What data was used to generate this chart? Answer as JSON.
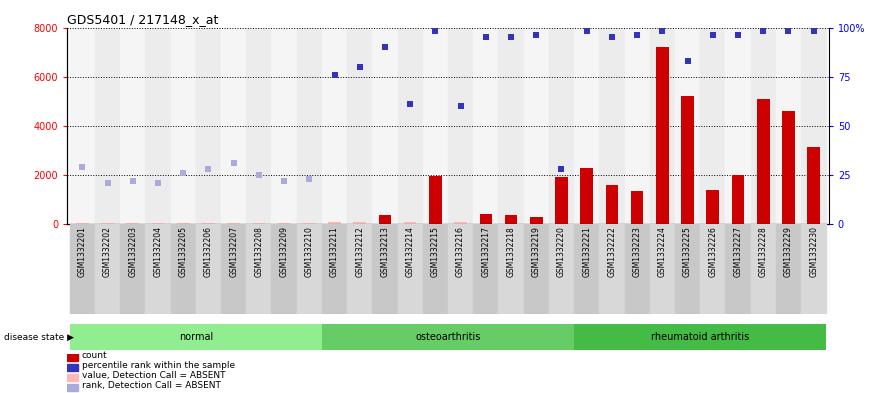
{
  "title": "GDS5401 / 217148_x_at",
  "samples": [
    "GSM1332201",
    "GSM1332202",
    "GSM1332203",
    "GSM1332204",
    "GSM1332205",
    "GSM1332206",
    "GSM1332207",
    "GSM1332208",
    "GSM1332209",
    "GSM1332210",
    "GSM1332211",
    "GSM1332212",
    "GSM1332213",
    "GSM1332214",
    "GSM1332215",
    "GSM1332216",
    "GSM1332217",
    "GSM1332218",
    "GSM1332219",
    "GSM1332220",
    "GSM1332221",
    "GSM1332222",
    "GSM1332223",
    "GSM1332224",
    "GSM1332225",
    "GSM1332226",
    "GSM1332227",
    "GSM1332228",
    "GSM1332229",
    "GSM1332230"
  ],
  "count_values": [
    50,
    55,
    55,
    50,
    50,
    55,
    50,
    45,
    50,
    50,
    80,
    70,
    350,
    80,
    1950,
    80,
    400,
    380,
    280,
    1900,
    2300,
    1600,
    1350,
    7200,
    5200,
    1380,
    2000,
    5100,
    4600,
    3150
  ],
  "absent_flags": [
    true,
    true,
    true,
    true,
    true,
    true,
    true,
    true,
    true,
    true,
    true,
    true,
    false,
    true,
    false,
    true,
    false,
    false,
    false,
    false,
    false,
    false,
    false,
    false,
    false,
    false,
    false,
    false,
    false,
    false
  ],
  "rank_values_pct": [
    29,
    21,
    22,
    21,
    26,
    28,
    31,
    25,
    22,
    23,
    76,
    80,
    90,
    61,
    98,
    60,
    95,
    95,
    96,
    28,
    98,
    95,
    96,
    98,
    83,
    96,
    96,
    98,
    98,
    98
  ],
  "absent_rank_flags": [
    true,
    true,
    true,
    true,
    true,
    true,
    true,
    true,
    true,
    true,
    false,
    false,
    false,
    false,
    false,
    false,
    false,
    false,
    false,
    false,
    false,
    false,
    false,
    false,
    false,
    false,
    false,
    false,
    false,
    false
  ],
  "disease_groups": [
    {
      "label": "normal",
      "start": 0,
      "end": 10,
      "color": "#90EE90"
    },
    {
      "label": "osteoarthritis",
      "start": 10,
      "end": 20,
      "color": "#66CC66"
    },
    {
      "label": "rheumatoid arthritis",
      "start": 20,
      "end": 30,
      "color": "#44BB44"
    }
  ],
  "ylim_left": [
    0,
    8000
  ],
  "ylim_right": [
    0,
    100
  ],
  "yticks_left": [
    0,
    2000,
    4000,
    6000,
    8000
  ],
  "yticks_right": [
    0,
    25,
    50,
    75,
    100
  ],
  "bar_color": "#CC0000",
  "absent_bar_color": "#FFB6B6",
  "rank_color": "#3333BB",
  "absent_rank_color": "#AAAADD",
  "bg_color": "#FFFFFF",
  "plot_bg": "#FFFFFF",
  "legend": [
    {
      "label": "count",
      "color": "#CC0000"
    },
    {
      "label": "percentile rank within the sample",
      "color": "#3333BB"
    },
    {
      "label": "value, Detection Call = ABSENT",
      "color": "#FFB6B6"
    },
    {
      "label": "rank, Detection Call = ABSENT",
      "color": "#AAAADD"
    }
  ]
}
